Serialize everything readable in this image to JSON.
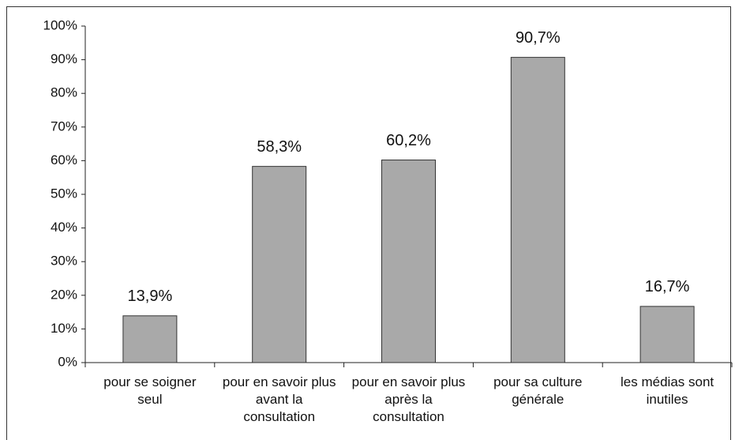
{
  "chart_data": {
    "type": "bar",
    "categories": [
      "pour se soigner seul",
      "pour en savoir plus avant la consultation",
      "pour en savoir plus après la consultation",
      "pour sa culture générale",
      "les médias sont inutiles"
    ],
    "values": [
      13.9,
      58.3,
      60.2,
      90.7,
      16.7
    ],
    "value_labels": [
      "13,9%",
      "58,3%",
      "60,2%",
      "90,7%",
      "16,7%"
    ],
    "color": "#a9a9a9",
    "ylim": [
      0,
      100
    ],
    "yticks": [
      {
        "value": 0,
        "label": "0%"
      },
      {
        "value": 10,
        "label": "10%"
      },
      {
        "value": 20,
        "label": "20%"
      },
      {
        "value": 30,
        "label": "30%"
      },
      {
        "value": 40,
        "label": "40%"
      },
      {
        "value": 50,
        "label": "50%"
      },
      {
        "value": 60,
        "label": "60%"
      },
      {
        "value": 70,
        "label": "70%"
      },
      {
        "value": 80,
        "label": "80%"
      },
      {
        "value": 90,
        "label": "90%"
      },
      {
        "value": 100,
        "label": "100%"
      }
    ],
    "grid": false
  }
}
